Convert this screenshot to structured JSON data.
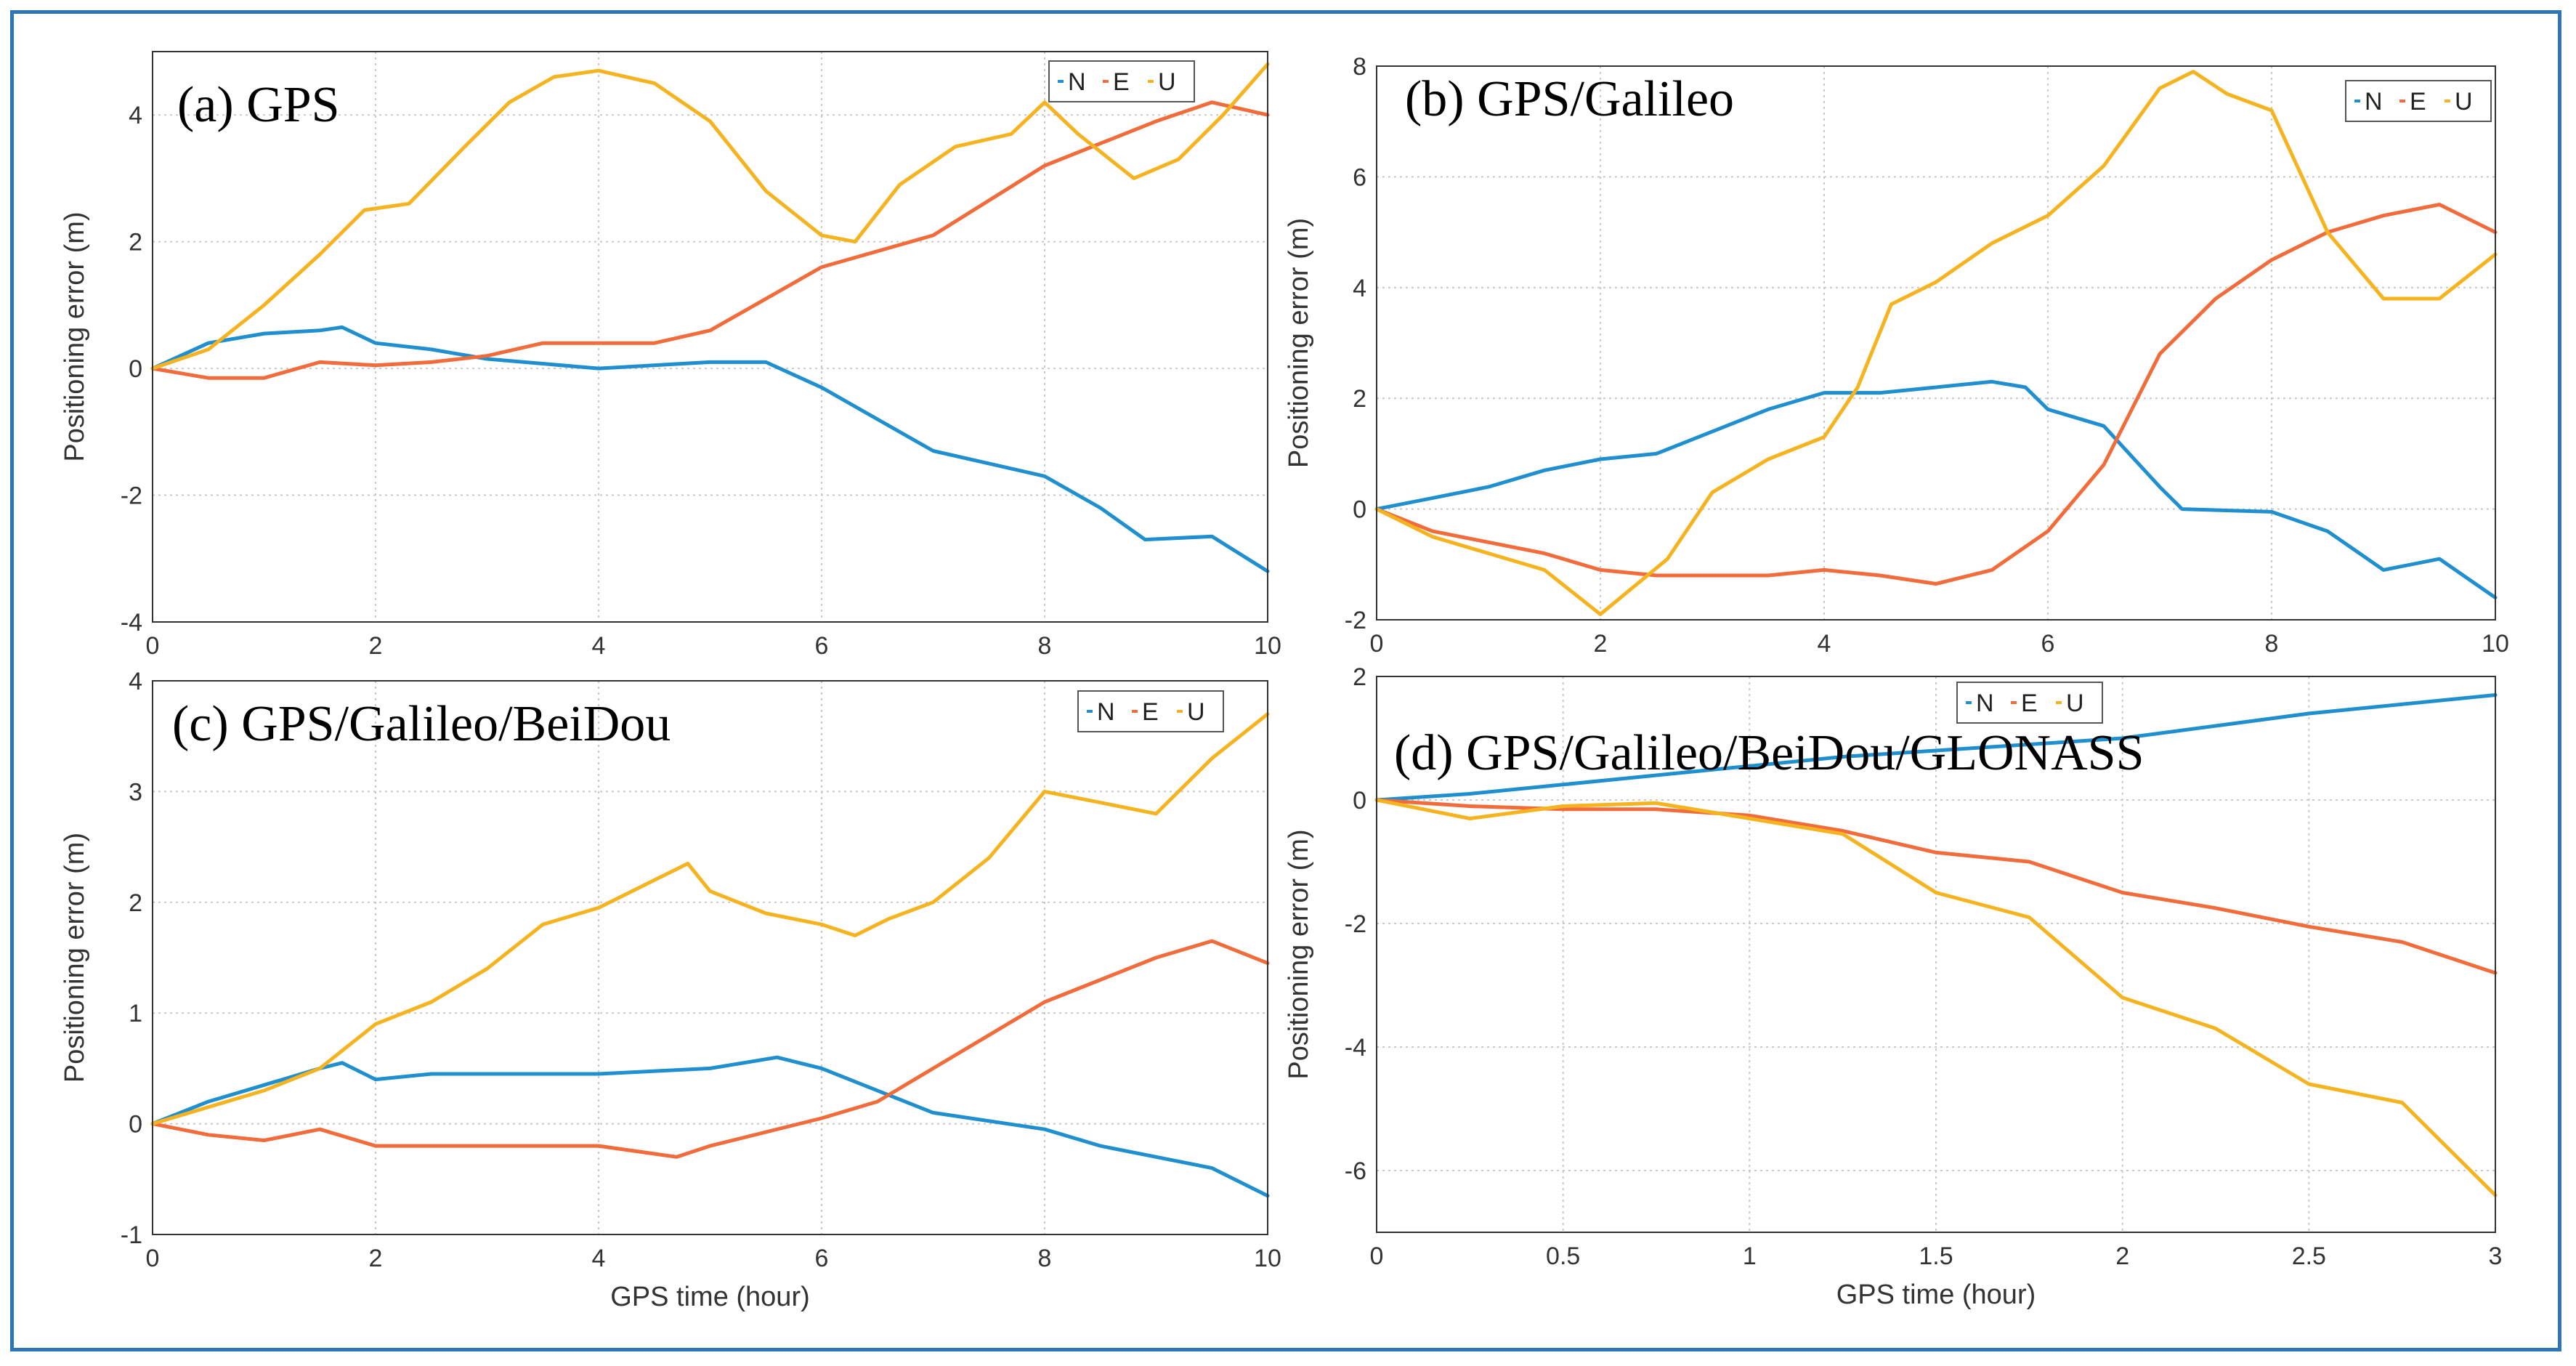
{
  "colors": {
    "N": "#1f8fd0",
    "E": "#f26b3a",
    "U": "#f5b320",
    "frame": "#2e75b6",
    "grid": "#c8c8c8"
  },
  "legend_labels": [
    "N",
    "E",
    "U"
  ],
  "chart_data": [
    {
      "id": "a",
      "type": "line",
      "title": "(a)  GPS",
      "xlabel": "",
      "ylabel": "Positioning error (m)",
      "xlim": [
        0,
        10
      ],
      "ylim": [
        -4,
        5
      ],
      "xticks": [
        0,
        2,
        4,
        6,
        8,
        10
      ],
      "yticks": [
        -4,
        -2,
        0,
        2,
        4
      ],
      "xticklabels": [
        "0",
        "2",
        "4",
        "6",
        "8",
        "10"
      ],
      "yticklabels": [
        "-4",
        "-2",
        "0",
        "2",
        "4"
      ],
      "grid": true,
      "legend": "top-right",
      "series": [
        {
          "name": "N",
          "x": [
            0,
            0.5,
            1,
            1.5,
            1.7,
            2,
            2.5,
            3,
            4,
            5,
            5.5,
            6,
            7,
            8,
            8.5,
            8.9,
            9.5,
            10
          ],
          "y": [
            0,
            0.4,
            0.55,
            0.6,
            0.65,
            0.4,
            0.3,
            0.15,
            0,
            0.1,
            0.1,
            -0.3,
            -1.3,
            -1.7,
            -2.2,
            -2.7,
            -2.65,
            -3.2
          ]
        },
        {
          "name": "E",
          "x": [
            0,
            0.5,
            1,
            1.5,
            2,
            2.5,
            3,
            3.5,
            4,
            4.5,
            5,
            5.5,
            6,
            7,
            8,
            9,
            9.5,
            10
          ],
          "y": [
            0,
            -0.15,
            -0.15,
            0.1,
            0.05,
            0.1,
            0.2,
            0.4,
            0.4,
            0.4,
            0.6,
            1.1,
            1.6,
            2.1,
            3.2,
            3.9,
            4.2,
            4.0
          ]
        },
        {
          "name": "U",
          "x": [
            0,
            0.5,
            1,
            1.5,
            1.9,
            2.3,
            2.8,
            3.2,
            3.6,
            4,
            4.5,
            5,
            5.5,
            6,
            6.3,
            6.7,
            7.2,
            7.7,
            8,
            8.3,
            8.8,
            9.2,
            9.6,
            10
          ],
          "y": [
            0,
            0.3,
            1.0,
            1.8,
            2.5,
            2.6,
            3.5,
            4.2,
            4.6,
            4.7,
            4.5,
            3.9,
            2.8,
            2.1,
            2.0,
            2.9,
            3.5,
            3.7,
            4.2,
            3.7,
            3.0,
            3.3,
            4.0,
            4.8
          ]
        }
      ]
    },
    {
      "id": "b",
      "type": "line",
      "title": "(b) GPS/Galileo",
      "xlabel": "",
      "ylabel": "Positioning error (m)",
      "xlim": [
        0,
        10
      ],
      "ylim": [
        -2,
        8
      ],
      "xticks": [
        0,
        2,
        4,
        6,
        8,
        10
      ],
      "yticks": [
        -2,
        0,
        2,
        4,
        6,
        8
      ],
      "xticklabels": [
        "0",
        "2",
        "4",
        "6",
        "8",
        "10"
      ],
      "yticklabels": [
        "-2",
        "0",
        "2",
        "4",
        "6",
        "8"
      ],
      "grid": true,
      "legend": "top-right",
      "series": [
        {
          "name": "N",
          "x": [
            0,
            0.5,
            1,
            1.5,
            2,
            2.5,
            3,
            3.5,
            4,
            4.5,
            5,
            5.5,
            5.8,
            6,
            6.5,
            7,
            7.2,
            8,
            8.5,
            9,
            9.5,
            10
          ],
          "y": [
            0,
            0.2,
            0.4,
            0.7,
            0.9,
            1.0,
            1.4,
            1.8,
            2.1,
            2.1,
            2.2,
            2.3,
            2.2,
            1.8,
            1.5,
            0.4,
            0,
            -0.05,
            -0.4,
            -1.1,
            -0.9,
            -1.6
          ]
        },
        {
          "name": "E",
          "x": [
            0,
            0.5,
            1,
            1.5,
            2,
            2.5,
            3,
            3.5,
            4,
            4.5,
            5,
            5.5,
            6,
            6.5,
            7,
            7.5,
            8,
            8.5,
            9,
            9.5,
            10
          ],
          "y": [
            0,
            -0.4,
            -0.6,
            -0.8,
            -1.1,
            -1.2,
            -1.2,
            -1.2,
            -1.1,
            -1.2,
            -1.35,
            -1.1,
            -0.4,
            0.8,
            2.8,
            3.8,
            4.5,
            5.0,
            5.3,
            5.5,
            5.0
          ]
        },
        {
          "name": "U",
          "x": [
            0,
            0.5,
            1,
            1.5,
            2,
            2.3,
            2.6,
            3,
            3.5,
            4,
            4.3,
            4.6,
            5,
            5.5,
            6,
            6.5,
            7,
            7.3,
            7.6,
            8,
            8.5,
            9,
            9.5,
            10
          ],
          "y": [
            0,
            -0.5,
            -0.8,
            -1.1,
            -1.9,
            -1.4,
            -0.9,
            0.3,
            0.9,
            1.3,
            2.2,
            3.7,
            4.1,
            4.8,
            5.3,
            6.2,
            7.6,
            7.9,
            7.5,
            7.2,
            5.0,
            3.8,
            3.8,
            4.6
          ]
        }
      ]
    },
    {
      "id": "c",
      "type": "line",
      "title": "(c) GPS/Galileo/BeiDou",
      "xlabel": "GPS time (hour)",
      "ylabel": "Positioning error (m)",
      "xlim": [
        0,
        10
      ],
      "ylim": [
        -1,
        4
      ],
      "xticks": [
        0,
        2,
        4,
        6,
        8,
        10
      ],
      "yticks": [
        -1,
        0,
        1,
        2,
        3,
        4
      ],
      "xticklabels": [
        "0",
        "2",
        "4",
        "6",
        "8",
        "10"
      ],
      "yticklabels": [
        "-1",
        "0",
        "1",
        "2",
        "3",
        "4"
      ],
      "grid": true,
      "legend": "top-right",
      "series": [
        {
          "name": "N",
          "x": [
            0,
            0.5,
            1,
            1.5,
            1.7,
            2,
            2.5,
            3,
            4,
            5,
            5.6,
            6,
            6.5,
            7,
            8,
            8.5,
            9,
            9.5,
            10
          ],
          "y": [
            0,
            0.2,
            0.35,
            0.5,
            0.55,
            0.4,
            0.45,
            0.45,
            0.45,
            0.5,
            0.6,
            0.5,
            0.3,
            0.1,
            -0.05,
            -0.2,
            -0.3,
            -0.4,
            -0.65
          ]
        },
        {
          "name": "E",
          "x": [
            0,
            0.5,
            1,
            1.5,
            2,
            3,
            4,
            4.7,
            5,
            6,
            6.5,
            7,
            7.5,
            8,
            8.5,
            9,
            9.5,
            10
          ],
          "y": [
            0,
            -0.1,
            -0.15,
            -0.05,
            -0.2,
            -0.2,
            -0.2,
            -0.3,
            -0.2,
            0.05,
            0.2,
            0.5,
            0.8,
            1.1,
            1.3,
            1.5,
            1.65,
            1.45
          ]
        },
        {
          "name": "U",
          "x": [
            0,
            0.5,
            1,
            1.5,
            2,
            2.5,
            3,
            3.5,
            4,
            4.5,
            4.8,
            5,
            5.5,
            6,
            6.3,
            6.6,
            7,
            7.5,
            8,
            8.5,
            9,
            9.5,
            10
          ],
          "y": [
            0,
            0.15,
            0.3,
            0.5,
            0.9,
            1.1,
            1.4,
            1.8,
            1.95,
            2.2,
            2.35,
            2.1,
            1.9,
            1.8,
            1.7,
            1.85,
            2.0,
            2.4,
            3.0,
            2.9,
            2.8,
            3.3,
            3.7
          ]
        }
      ]
    },
    {
      "id": "d",
      "type": "line",
      "title": "(d) GPS/Galileo/BeiDou/GLONASS",
      "xlabel": "GPS time (hour)",
      "ylabel": "Positioning error (m)",
      "xlim": [
        0,
        3
      ],
      "ylim": [
        -7,
        2
      ],
      "xticks": [
        0,
        0.5,
        1,
        1.5,
        2,
        2.5,
        3
      ],
      "yticks": [
        -6,
        -4,
        -2,
        0,
        2
      ],
      "xticklabels": [
        "0",
        "0.5",
        "1",
        "1.5",
        "2",
        "2.5",
        "3"
      ],
      "yticklabels": [
        "-6",
        "-4",
        "-2",
        "0",
        "2"
      ],
      "grid": true,
      "legend": "top-center",
      "series": [
        {
          "name": "N",
          "x": [
            0,
            0.25,
            0.5,
            0.75,
            1,
            1.25,
            1.5,
            1.75,
            2,
            2.25,
            2.5,
            2.75,
            3
          ],
          "y": [
            0,
            0.1,
            0.25,
            0.4,
            0.55,
            0.7,
            0.8,
            0.9,
            1.0,
            1.2,
            1.4,
            1.55,
            1.7
          ]
        },
        {
          "name": "E",
          "x": [
            0,
            0.25,
            0.5,
            0.75,
            1,
            1.25,
            1.5,
            1.75,
            2,
            2.25,
            2.5,
            2.75,
            3
          ],
          "y": [
            0,
            -0.1,
            -0.15,
            -0.15,
            -0.25,
            -0.5,
            -0.85,
            -1.0,
            -1.5,
            -1.75,
            -2.05,
            -2.3,
            -2.8
          ]
        },
        {
          "name": "U",
          "x": [
            0,
            0.25,
            0.5,
            0.75,
            1,
            1.25,
            1.5,
            1.75,
            2,
            2.25,
            2.5,
            2.75,
            3
          ],
          "y": [
            0,
            -0.3,
            -0.1,
            -0.05,
            -0.3,
            -0.55,
            -1.5,
            -1.9,
            -3.2,
            -3.7,
            -4.6,
            -4.9,
            -6.4
          ]
        }
      ]
    }
  ]
}
